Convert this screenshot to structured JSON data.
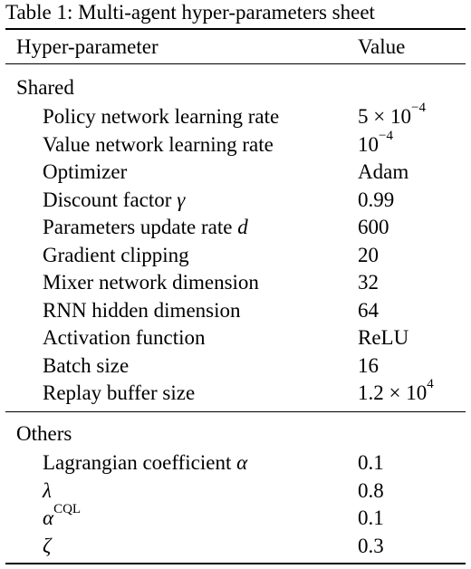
{
  "caption": "Table 1: Multi-agent hyper-parameters sheet",
  "header": [
    "Hyper-parameter",
    "Value"
  ],
  "sections": [
    {
      "title": "Shared",
      "rows": [
        [
          "Policy network learning rate",
          {
            "text": "5 × 10",
            "sup": "−4"
          }
        ],
        [
          "Value network learning rate",
          {
            "text": "10",
            "sup": "−4"
          }
        ],
        [
          "Optimizer",
          "Adam"
        ],
        [
          {
            "text": "Discount factor ",
            "math": "γ"
          },
          "0.99"
        ],
        [
          {
            "text": "Parameters update rate ",
            "math": "d"
          },
          "600"
        ],
        [
          "Gradient clipping",
          "20"
        ],
        [
          "Mixer network dimension",
          "32"
        ],
        [
          "RNN hidden dimension",
          "64"
        ],
        [
          "Activation function",
          "ReLU"
        ],
        [
          "Batch size",
          "16"
        ],
        [
          "Replay buffer size",
          {
            "text": "1.2 × 10",
            "sup": "4"
          }
        ]
      ]
    },
    {
      "title": "Others",
      "rows": [
        [
          {
            "text": "Lagrangian coefficient ",
            "math": "α"
          },
          "0.1"
        ],
        [
          {
            "math": "λ"
          },
          "0.8"
        ],
        [
          {
            "math": "α",
            "sup": "CQL"
          },
          "0.1"
        ],
        [
          {
            "math": "ζ"
          },
          "0.3"
        ]
      ]
    }
  ]
}
